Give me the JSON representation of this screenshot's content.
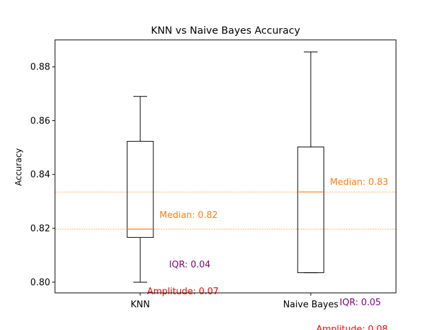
{
  "chart_data": {
    "type": "box",
    "title": "KNN vs Naive Bayes Accuracy",
    "xlabel": "",
    "ylabel": "Accuracy",
    "ylim": [
      0.796,
      0.89
    ],
    "yticks": [
      0.8,
      0.82,
      0.84,
      0.86,
      0.88
    ],
    "ytick_labels": [
      "0.80",
      "0.82",
      "0.84",
      "0.86",
      "0.88"
    ],
    "grid": false,
    "categories": [
      "KNN",
      "Naive Bayes"
    ],
    "boxes": [
      {
        "name": "KNN",
        "whisker_low": 0.8,
        "q1": 0.8166,
        "median": 0.8197,
        "q3": 0.8523,
        "whisker_high": 0.869,
        "median_label": "Median: 0.82",
        "iqr_label": "IQR: 0.04",
        "amplitude_label": "Amplitude: 0.07"
      },
      {
        "name": "Naive Bayes",
        "whisker_low": 0.8035,
        "q1": 0.8035,
        "median": 0.8335,
        "q3": 0.8502,
        "whisker_high": 0.8855,
        "median_label": "Median: 0.83",
        "iqr_label": "IQR: 0.05",
        "amplitude_label": "Amplitude: 0.08"
      }
    ],
    "colors": {
      "box": "#000000",
      "median": "#ff7f0e",
      "iqr_text": "#800080",
      "amplitude_text": "#ff0000"
    }
  }
}
